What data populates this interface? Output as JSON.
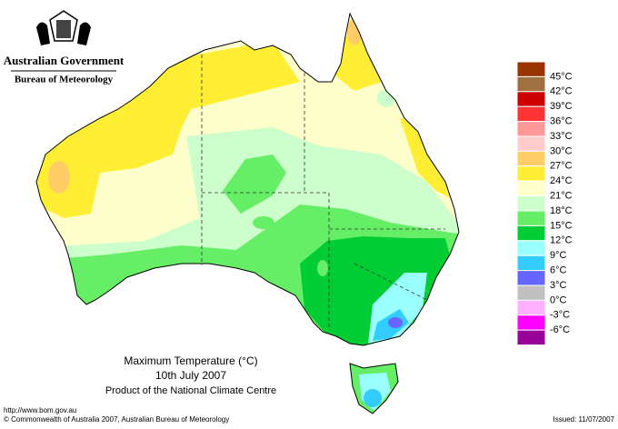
{
  "header": {
    "title": "Australian Government",
    "subtitle": "Bureau of Meteorology"
  },
  "caption": {
    "title": "Maximum Temperature (°C)",
    "date": "10th July 2007",
    "source": "Product of the National Climate Centre"
  },
  "footer": {
    "url": "http://www.bom.gov.au",
    "copyright": "© Commonwealth of Australia 2007, Australian Bureau of Meteorology",
    "issued": "Issued: 11/07/2007"
  },
  "legend": {
    "labels": [
      "45°C",
      "42°C",
      "39°C",
      "36°C",
      "33°C",
      "30°C",
      "27°C",
      "24°C",
      "21°C",
      "18°C",
      "15°C",
      "12°C",
      "9°C",
      "6°C",
      "3°C",
      "0°C",
      "-3°C",
      "-6°C"
    ],
    "colors": [
      "#993300",
      "#a0713f",
      "#cc0000",
      "#ff3333",
      "#ff9999",
      "#ffcccc",
      "#ffcc66",
      "#ffee33",
      "#ffffcc",
      "#ccffcc",
      "#66ee66",
      "#00cc33",
      "#99ffff",
      "#33ccff",
      "#6666ff",
      "#c0c0c0",
      "#ffb0ff",
      "#ff00ff",
      "#990099"
    ]
  }
}
